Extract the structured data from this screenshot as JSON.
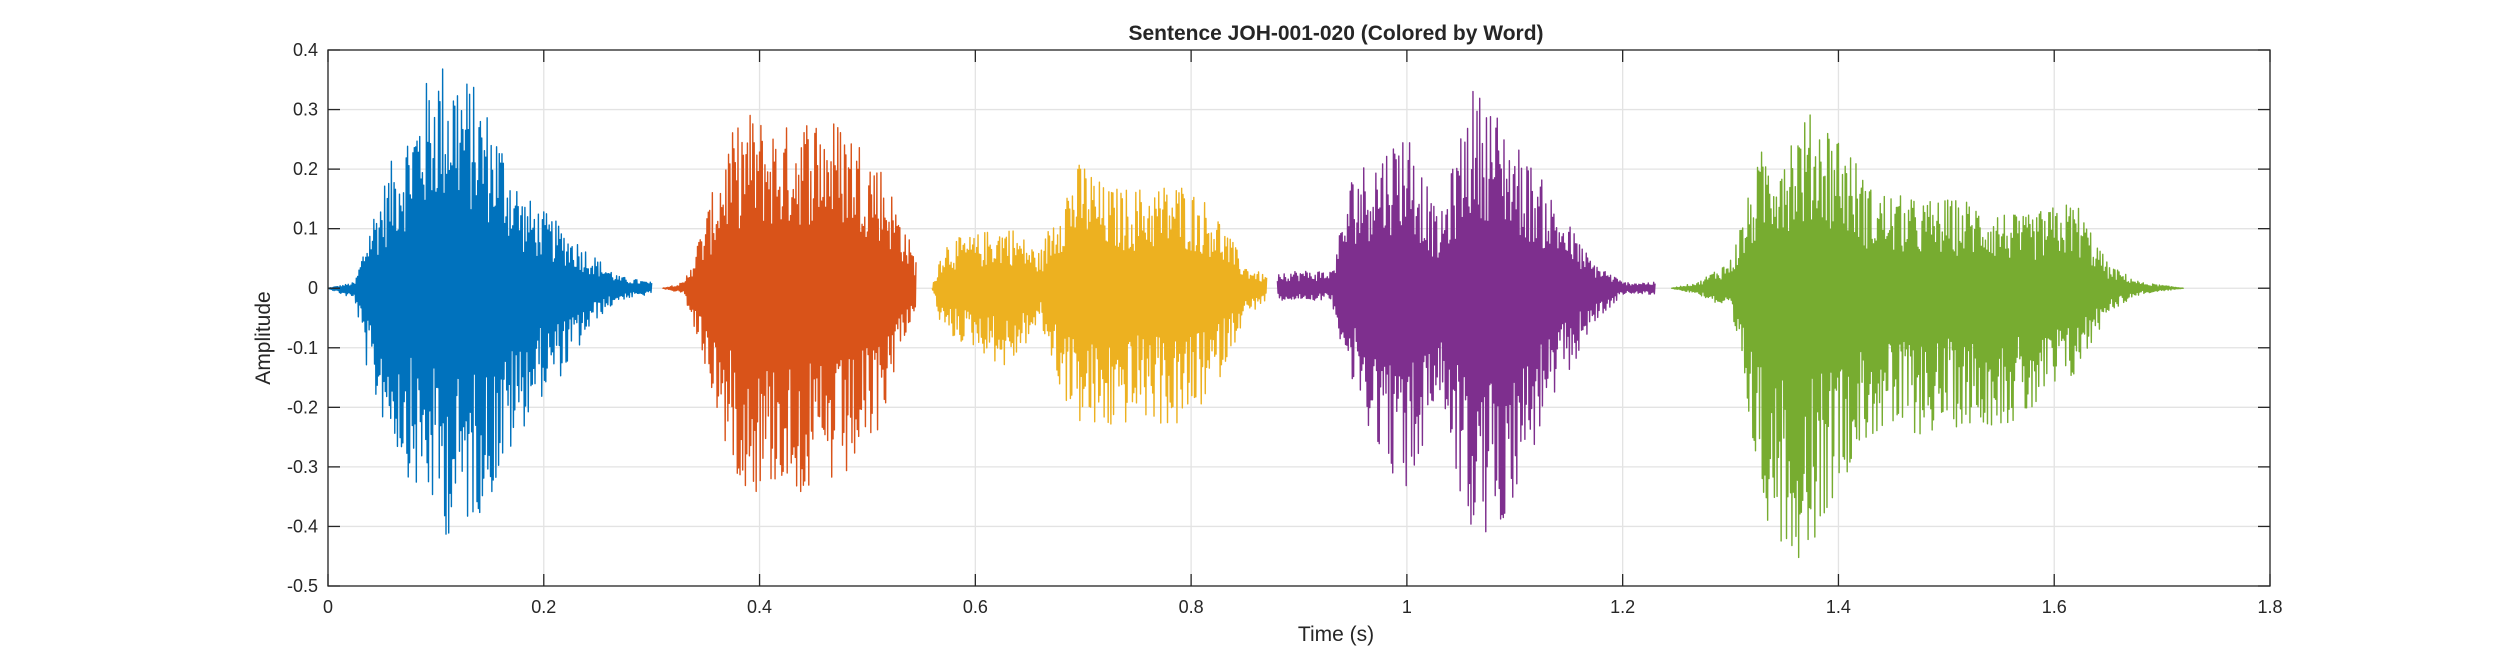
{
  "chart_data": {
    "type": "line",
    "title": "Sentence JOH-001-020 (Colored by Word)",
    "xlabel": "Time (s)",
    "ylabel": "Amplitude",
    "xlim": [
      0,
      1.8
    ],
    "ylim": [
      -0.5,
      0.4
    ],
    "xticks": [
      0,
      0.2,
      0.4,
      0.6,
      0.8,
      1,
      1.2,
      1.4,
      1.6,
      1.8
    ],
    "xtick_labels": [
      "0",
      "0.2",
      "0.4",
      "0.6",
      "0.8",
      "1",
      "1.2",
      "1.4",
      "1.6",
      "1.8"
    ],
    "yticks": [
      -0.5,
      -0.4,
      -0.3,
      -0.2,
      -0.1,
      0,
      0.1,
      0.2,
      0.3,
      0.4
    ],
    "ytick_labels": [
      "-0.5",
      "-0.4",
      "-0.3",
      "-0.2",
      "-0.1",
      "0",
      "0.1",
      "0.2",
      "0.3",
      "0.4"
    ],
    "grid": true,
    "series": [
      {
        "color": "#0072bd",
        "time_range": [
          0.0,
          0.3
        ],
        "envelope_pos": [
          [
            0.0,
            0.0
          ],
          [
            0.025,
            0.01
          ],
          [
            0.04,
            0.12
          ],
          [
            0.06,
            0.22
          ],
          [
            0.08,
            0.3
          ],
          [
            0.1,
            0.39
          ],
          [
            0.12,
            0.38
          ],
          [
            0.14,
            0.33
          ],
          [
            0.16,
            0.26
          ],
          [
            0.18,
            0.16
          ],
          [
            0.2,
            0.13
          ],
          [
            0.22,
            0.1
          ],
          [
            0.25,
            0.05
          ],
          [
            0.27,
            0.02
          ],
          [
            0.3,
            0.01
          ]
        ],
        "envelope_neg": [
          [
            0.0,
            0.0
          ],
          [
            0.025,
            -0.02
          ],
          [
            0.04,
            -0.18
          ],
          [
            0.06,
            -0.26
          ],
          [
            0.08,
            -0.34
          ],
          [
            0.1,
            -0.38
          ],
          [
            0.11,
            -0.42
          ],
          [
            0.13,
            -0.4
          ],
          [
            0.15,
            -0.36
          ],
          [
            0.17,
            -0.28
          ],
          [
            0.19,
            -0.2
          ],
          [
            0.22,
            -0.14
          ],
          [
            0.25,
            -0.05
          ],
          [
            0.27,
            -0.02
          ],
          [
            0.3,
            -0.01
          ]
        ]
      },
      {
        "color": "#d95319",
        "time_range": [
          0.31,
          0.545
        ],
        "envelope_pos": [
          [
            0.31,
            0.0
          ],
          [
            0.33,
            0.01
          ],
          [
            0.35,
            0.12
          ],
          [
            0.37,
            0.25
          ],
          [
            0.39,
            0.3
          ],
          [
            0.42,
            0.27
          ],
          [
            0.45,
            0.3
          ],
          [
            0.48,
            0.28
          ],
          [
            0.51,
            0.22
          ],
          [
            0.53,
            0.13
          ],
          [
            0.545,
            0.05
          ]
        ],
        "envelope_neg": [
          [
            0.31,
            0.0
          ],
          [
            0.33,
            -0.01
          ],
          [
            0.35,
            -0.14
          ],
          [
            0.37,
            -0.28
          ],
          [
            0.39,
            -0.35
          ],
          [
            0.42,
            -0.33
          ],
          [
            0.45,
            -0.36
          ],
          [
            0.48,
            -0.33
          ],
          [
            0.51,
            -0.25
          ],
          [
            0.53,
            -0.1
          ],
          [
            0.545,
            -0.04
          ]
        ]
      },
      {
        "color": "#edb120",
        "time_range": [
          0.56,
          0.87
        ],
        "envelope_pos": [
          [
            0.56,
            0.0
          ],
          [
            0.57,
            0.08
          ],
          [
            0.6,
            0.09
          ],
          [
            0.63,
            0.11
          ],
          [
            0.66,
            0.06
          ],
          [
            0.68,
            0.17
          ],
          [
            0.7,
            0.22
          ],
          [
            0.72,
            0.17
          ],
          [
            0.75,
            0.17
          ],
          [
            0.79,
            0.18
          ],
          [
            0.82,
            0.14
          ],
          [
            0.85,
            0.04
          ],
          [
            0.87,
            0.02
          ]
        ],
        "envelope_neg": [
          [
            0.56,
            0.0
          ],
          [
            0.57,
            -0.08
          ],
          [
            0.6,
            -0.1
          ],
          [
            0.63,
            -0.14
          ],
          [
            0.66,
            -0.06
          ],
          [
            0.68,
            -0.18
          ],
          [
            0.7,
            -0.24
          ],
          [
            0.72,
            -0.25
          ],
          [
            0.75,
            -0.22
          ],
          [
            0.79,
            -0.24
          ],
          [
            0.82,
            -0.18
          ],
          [
            0.85,
            -0.05
          ],
          [
            0.87,
            -0.02
          ]
        ]
      },
      {
        "color": "#7e2f8e",
        "time_range": [
          0.88,
          1.23
        ],
        "envelope_pos": [
          [
            0.88,
            0.03
          ],
          [
            0.9,
            0.03
          ],
          [
            0.93,
            0.03
          ],
          [
            0.95,
            0.2
          ],
          [
            0.98,
            0.24
          ],
          [
            1.0,
            0.28
          ],
          [
            1.03,
            0.11
          ],
          [
            1.06,
            0.34
          ],
          [
            1.08,
            0.31
          ],
          [
            1.1,
            0.25
          ],
          [
            1.13,
            0.17
          ],
          [
            1.17,
            0.05
          ],
          [
            1.2,
            0.01
          ],
          [
            1.23,
            0.01
          ]
        ],
        "envelope_neg": [
          [
            0.88,
            -0.02
          ],
          [
            0.9,
            -0.02
          ],
          [
            0.93,
            -0.02
          ],
          [
            0.95,
            -0.18
          ],
          [
            0.98,
            -0.29
          ],
          [
            1.0,
            -0.36
          ],
          [
            1.03,
            -0.18
          ],
          [
            1.06,
            -0.44
          ],
          [
            1.08,
            -0.43
          ],
          [
            1.1,
            -0.35
          ],
          [
            1.13,
            -0.22
          ],
          [
            1.17,
            -0.07
          ],
          [
            1.2,
            -0.01
          ],
          [
            1.23,
            -0.01
          ]
        ]
      },
      {
        "color": "#77ac30",
        "time_range": [
          1.245,
          1.72
        ],
        "envelope_pos": [
          [
            1.245,
            0.0
          ],
          [
            1.27,
            0.01
          ],
          [
            1.3,
            0.05
          ],
          [
            1.33,
            0.24
          ],
          [
            1.36,
            0.28
          ],
          [
            1.38,
            0.3
          ],
          [
            1.4,
            0.27
          ],
          [
            1.43,
            0.17
          ],
          [
            1.47,
            0.15
          ],
          [
            1.52,
            0.15
          ],
          [
            1.57,
            0.12
          ],
          [
            1.62,
            0.15
          ],
          [
            1.65,
            0.04
          ],
          [
            1.68,
            0.01
          ],
          [
            1.72,
            0.0
          ]
        ],
        "envelope_neg": [
          [
            1.245,
            0.0
          ],
          [
            1.27,
            -0.01
          ],
          [
            1.3,
            -0.04
          ],
          [
            1.33,
            -0.38
          ],
          [
            1.36,
            -0.46
          ],
          [
            1.38,
            -0.42
          ],
          [
            1.4,
            -0.33
          ],
          [
            1.43,
            -0.25
          ],
          [
            1.47,
            -0.25
          ],
          [
            1.52,
            -0.23
          ],
          [
            1.57,
            -0.23
          ],
          [
            1.62,
            -0.15
          ],
          [
            1.65,
            -0.04
          ],
          [
            1.68,
            -0.01
          ],
          [
            1.72,
            0.0
          ]
        ]
      }
    ]
  }
}
